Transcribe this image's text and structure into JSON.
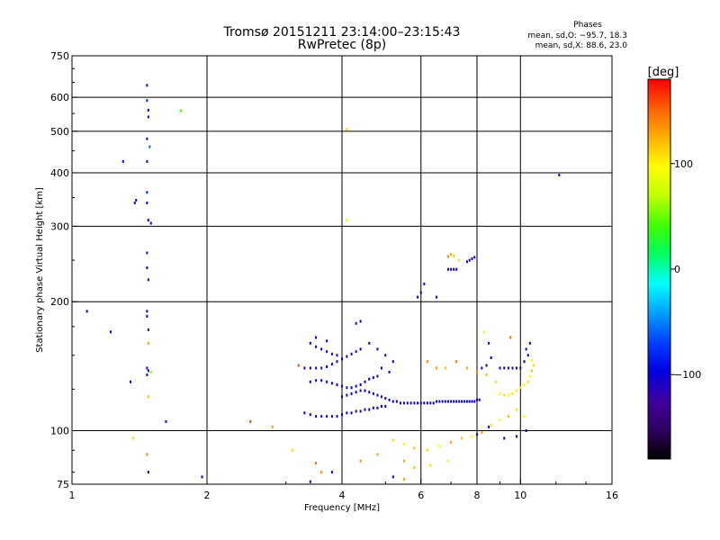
{
  "chart_data": {
    "type": "scatter",
    "title": "Tromsø 20151211 23:14:00–23:15:43",
    "subtitle": "RwPretec (8p)",
    "xlabel": "Frequency [MHz]",
    "ylabel": "Stationary phase Virtual Height [km]",
    "x_scale": "log",
    "y_scale": "log",
    "xlim": [
      1,
      16
    ],
    "ylim": [
      75,
      750
    ],
    "x_ticks": [
      1,
      2,
      4,
      6,
      8,
      10,
      16
    ],
    "x_tick_labels": [
      "1",
      "2",
      "4",
      "6",
      "8",
      "10",
      "16"
    ],
    "y_ticks": [
      75,
      100,
      200,
      300,
      400,
      500,
      600,
      750
    ],
    "y_tick_labels": [
      "75",
      "100",
      "200",
      "300",
      "400",
      "500",
      "600",
      "750"
    ],
    "x_gridlines": [
      2,
      4,
      6,
      8,
      10
    ],
    "y_gridlines": [
      100,
      200,
      300,
      400,
      500,
      600
    ],
    "grid": true,
    "stats": {
      "heading": "Phases",
      "line_o": "mean, sd,O: −95.7, 18.3",
      "line_x": "mean, sd,X:  88.6, 23.0"
    },
    "colorbar": {
      "label": "[deg]",
      "range": [
        -180,
        180
      ],
      "ticks": [
        100,
        0,
        -100
      ],
      "tick_labels": [
        "100",
        "0",
        "−100"
      ],
      "colors": [
        "#ff0000",
        "#ff6000",
        "#ffb000",
        "#ffff00",
        "#c0ff00",
        "#40ff00",
        "#00ff60",
        "#00ffff",
        "#00a0ff",
        "#0040ff",
        "#0000e0",
        "#4000a0",
        "#300060",
        "#000000"
      ]
    },
    "series": [
      {
        "values": [
          [
            1.3,
            425,
            -105
          ],
          [
            1.38,
            340,
            -90
          ],
          [
            1.39,
            345,
            -100
          ],
          [
            1.47,
            640,
            -110
          ],
          [
            1.47,
            590,
            -80
          ],
          [
            1.48,
            560,
            -100
          ],
          [
            1.48,
            540,
            -110
          ],
          [
            1.47,
            480,
            -110
          ],
          [
            1.49,
            460,
            -60
          ],
          [
            1.47,
            425,
            -90
          ],
          [
            1.47,
            360,
            -80
          ],
          [
            1.47,
            340,
            -100
          ],
          [
            1.48,
            310,
            -100
          ],
          [
            1.5,
            305,
            -110
          ],
          [
            1.47,
            260,
            -90
          ],
          [
            1.47,
            240,
            -110
          ],
          [
            1.48,
            225,
            -120
          ],
          [
            1.47,
            190,
            -110
          ],
          [
            1.47,
            185,
            -140
          ],
          [
            1.48,
            172,
            -130
          ],
          [
            1.48,
            160,
            130
          ],
          [
            1.47,
            140,
            -120
          ],
          [
            1.48,
            138,
            -90
          ],
          [
            1.5,
            137,
            60
          ],
          [
            1.47,
            135,
            -130
          ],
          [
            1.48,
            120,
            120
          ],
          [
            1.47,
            88,
            140
          ],
          [
            1.48,
            80,
            -150
          ],
          [
            1.08,
            190,
            -100
          ],
          [
            1.22,
            170,
            -100
          ],
          [
            1.35,
            130,
            -100
          ],
          [
            1.62,
            105,
            -120
          ],
          [
            1.75,
            558,
            40
          ],
          [
            1.37,
            96,
            110
          ],
          [
            1.95,
            78,
            -100
          ],
          [
            2.5,
            105,
            160
          ],
          [
            2.8,
            102,
            130
          ],
          [
            12.2,
            395,
            -100
          ]
        ]
      },
      {
        "values": [
          [
            3.3,
            140,
            -110
          ],
          [
            3.4,
            140,
            -100
          ],
          [
            3.5,
            140,
            -95
          ],
          [
            3.6,
            140,
            -90
          ],
          [
            3.7,
            141,
            -100
          ],
          [
            3.8,
            143,
            -105
          ],
          [
            3.9,
            145,
            -95
          ],
          [
            4.0,
            147,
            -100
          ],
          [
            4.1,
            149,
            -110
          ],
          [
            4.2,
            151,
            -100
          ],
          [
            4.3,
            153,
            -90
          ],
          [
            4.4,
            155,
            -100
          ],
          [
            3.4,
            160,
            -100
          ],
          [
            3.5,
            157,
            -105
          ],
          [
            3.6,
            155,
            -100
          ],
          [
            3.7,
            153,
            -110
          ],
          [
            3.8,
            151,
            -100
          ],
          [
            3.9,
            150,
            -100
          ],
          [
            3.5,
            165,
            -95
          ],
          [
            3.7,
            162,
            -100
          ],
          [
            3.4,
            130,
            -100
          ],
          [
            3.5,
            131,
            -110
          ],
          [
            3.6,
            131,
            -100
          ],
          [
            3.7,
            130,
            -95
          ],
          [
            3.8,
            129,
            -100
          ],
          [
            3.9,
            128,
            -105
          ],
          [
            4.0,
            127,
            -100
          ],
          [
            4.1,
            126,
            -110
          ],
          [
            4.2,
            126,
            -100
          ],
          [
            4.3,
            127,
            -95
          ],
          [
            4.4,
            128,
            -100
          ],
          [
            4.5,
            130,
            -105
          ],
          [
            4.6,
            132,
            -100
          ],
          [
            4.7,
            133,
            -110
          ],
          [
            4.8,
            134,
            -100
          ],
          [
            4.0,
            120,
            -100
          ],
          [
            4.1,
            121,
            -105
          ],
          [
            4.2,
            122,
            -95
          ],
          [
            4.3,
            123,
            -100
          ],
          [
            4.4,
            124,
            -110
          ],
          [
            4.5,
            124,
            -100
          ],
          [
            4.6,
            123,
            -100
          ],
          [
            4.7,
            122,
            -105
          ],
          [
            4.8,
            121,
            -100
          ],
          [
            4.9,
            120,
            -110
          ],
          [
            5.0,
            119,
            -100
          ],
          [
            5.1,
            118,
            -95
          ],
          [
            5.2,
            117,
            -100
          ],
          [
            5.3,
            117,
            -100
          ],
          [
            5.4,
            116,
            -105
          ],
          [
            5.5,
            116,
            -100
          ],
          [
            5.6,
            116,
            -110
          ],
          [
            5.7,
            116,
            -100
          ],
          [
            5.8,
            116,
            -95
          ],
          [
            5.9,
            116,
            -100
          ],
          [
            6.0,
            116,
            -100
          ],
          [
            6.1,
            116,
            -105
          ],
          [
            6.2,
            116,
            -100
          ],
          [
            6.3,
            116,
            -110
          ],
          [
            6.4,
            116,
            -100
          ],
          [
            6.5,
            117,
            -95
          ],
          [
            6.6,
            117,
            -100
          ],
          [
            6.7,
            117,
            -105
          ],
          [
            6.8,
            117,
            -100
          ],
          [
            6.9,
            117,
            -110
          ],
          [
            7.0,
            117,
            -100
          ],
          [
            7.1,
            117,
            -95
          ],
          [
            7.2,
            117,
            -100
          ],
          [
            7.3,
            117,
            -105
          ],
          [
            7.4,
            117,
            -100
          ],
          [
            7.5,
            117,
            -110
          ],
          [
            7.6,
            117,
            -100
          ],
          [
            7.7,
            117,
            -95
          ],
          [
            7.8,
            117,
            -100
          ],
          [
            7.9,
            117,
            -105
          ],
          [
            8.0,
            118,
            -100
          ],
          [
            8.1,
            118,
            -110
          ],
          [
            3.3,
            110,
            -100
          ],
          [
            3.4,
            109,
            -105
          ],
          [
            3.5,
            108,
            -110
          ],
          [
            3.6,
            108,
            -100
          ],
          [
            3.7,
            108,
            -95
          ],
          [
            3.8,
            108,
            -100
          ],
          [
            3.9,
            108,
            -105
          ],
          [
            4.0,
            109,
            -100
          ],
          [
            4.1,
            110,
            -110
          ],
          [
            4.2,
            110,
            -100
          ],
          [
            4.3,
            111,
            -95
          ],
          [
            4.4,
            111,
            -100
          ],
          [
            4.5,
            112,
            -105
          ],
          [
            4.6,
            112,
            -100
          ],
          [
            4.7,
            113,
            -110
          ],
          [
            4.8,
            113,
            -100
          ],
          [
            4.9,
            114,
            -95
          ],
          [
            5.0,
            114,
            -100
          ],
          [
            4.3,
            178,
            -110
          ],
          [
            4.4,
            180,
            -100
          ],
          [
            4.6,
            160,
            -105
          ],
          [
            4.8,
            155,
            -100
          ],
          [
            5.0,
            150,
            -110
          ],
          [
            5.2,
            145,
            -100
          ],
          [
            4.9,
            140,
            -95
          ],
          [
            5.1,
            137,
            -100
          ],
          [
            5.9,
            205,
            -100
          ],
          [
            6.0,
            210,
            -105
          ],
          [
            6.1,
            220,
            -100
          ],
          [
            6.5,
            205,
            -110
          ],
          [
            6.9,
            238,
            -100
          ],
          [
            7.0,
            238,
            -105
          ],
          [
            7.1,
            238,
            -110
          ],
          [
            7.2,
            238,
            -100
          ],
          [
            7.6,
            248,
            -100
          ],
          [
            7.7,
            250,
            -105
          ],
          [
            7.8,
            252,
            -100
          ],
          [
            7.9,
            254,
            -110
          ],
          [
            6.9,
            255,
            140
          ],
          [
            7.0,
            258,
            130
          ],
          [
            7.1,
            256,
            120
          ],
          [
            7.3,
            250,
            110
          ],
          [
            6.2,
            145,
            140
          ],
          [
            6.5,
            140,
            130
          ],
          [
            6.8,
            140,
            120
          ],
          [
            7.2,
            145,
            150
          ],
          [
            7.6,
            140,
            130
          ],
          [
            8.0,
            137,
            140
          ],
          [
            8.4,
            135,
            120
          ],
          [
            8.8,
            130,
            110
          ],
          [
            9.0,
            122,
            100
          ],
          [
            9.2,
            121,
            110
          ],
          [
            9.4,
            121,
            100
          ],
          [
            9.6,
            122,
            110
          ],
          [
            9.8,
            124,
            100
          ],
          [
            10.0,
            126,
            110
          ],
          [
            10.2,
            128,
            100
          ],
          [
            10.4,
            130,
            110
          ],
          [
            10.5,
            134,
            100
          ],
          [
            10.6,
            138,
            120
          ],
          [
            10.7,
            142,
            110
          ],
          [
            10.6,
            146,
            100
          ],
          [
            10.4,
            150,
            -100
          ],
          [
            10.3,
            155,
            -100
          ],
          [
            10.5,
            160,
            -95
          ],
          [
            10.2,
            145,
            -100
          ],
          [
            9.0,
            140,
            -100
          ],
          [
            9.2,
            140,
            -105
          ],
          [
            9.4,
            140,
            -110
          ],
          [
            9.6,
            140,
            -100
          ],
          [
            9.8,
            140,
            -95
          ],
          [
            10.0,
            140,
            -100
          ],
          [
            8.2,
            140,
            -100
          ],
          [
            8.4,
            142,
            -105
          ],
          [
            8.6,
            148,
            -100
          ],
          [
            8.5,
            160,
            -110
          ],
          [
            8.3,
            170,
            100
          ],
          [
            9.5,
            165,
            150
          ],
          [
            5.2,
            95,
            110
          ],
          [
            5.5,
            93,
            100
          ],
          [
            5.8,
            91,
            120
          ],
          [
            6.2,
            90,
            110
          ],
          [
            6.6,
            92,
            100
          ],
          [
            7.0,
            94,
            130
          ],
          [
            7.4,
            96,
            120
          ],
          [
            7.8,
            97,
            100
          ],
          [
            8.2,
            99,
            130
          ],
          [
            8.6,
            103,
            110
          ],
          [
            9.0,
            106,
            100
          ],
          [
            9.4,
            108,
            120
          ],
          [
            9.8,
            112,
            110
          ],
          [
            10.2,
            108,
            100
          ],
          [
            8.0,
            98,
            -100
          ],
          [
            8.5,
            102,
            -105
          ],
          [
            9.2,
            96,
            -100
          ],
          [
            9.8,
            97,
            -110
          ],
          [
            10.3,
            100,
            -100
          ],
          [
            5.5,
            85,
            130
          ],
          [
            5.8,
            82,
            120
          ],
          [
            6.3,
            83,
            110
          ],
          [
            6.9,
            85,
            100
          ],
          [
            4.4,
            85,
            140
          ],
          [
            4.8,
            88,
            130
          ],
          [
            3.8,
            80,
            -100
          ],
          [
            5.2,
            78,
            -100
          ],
          [
            5.5,
            77,
            130
          ],
          [
            3.1,
            90,
            110
          ],
          [
            3.5,
            84,
            150
          ],
          [
            3.6,
            80,
            140
          ],
          [
            3.4,
            76,
            -100
          ],
          [
            3.2,
            142,
            160
          ],
          [
            4.1,
            505,
            110
          ],
          [
            4.1,
            310,
            80
          ]
        ]
      }
    ]
  }
}
